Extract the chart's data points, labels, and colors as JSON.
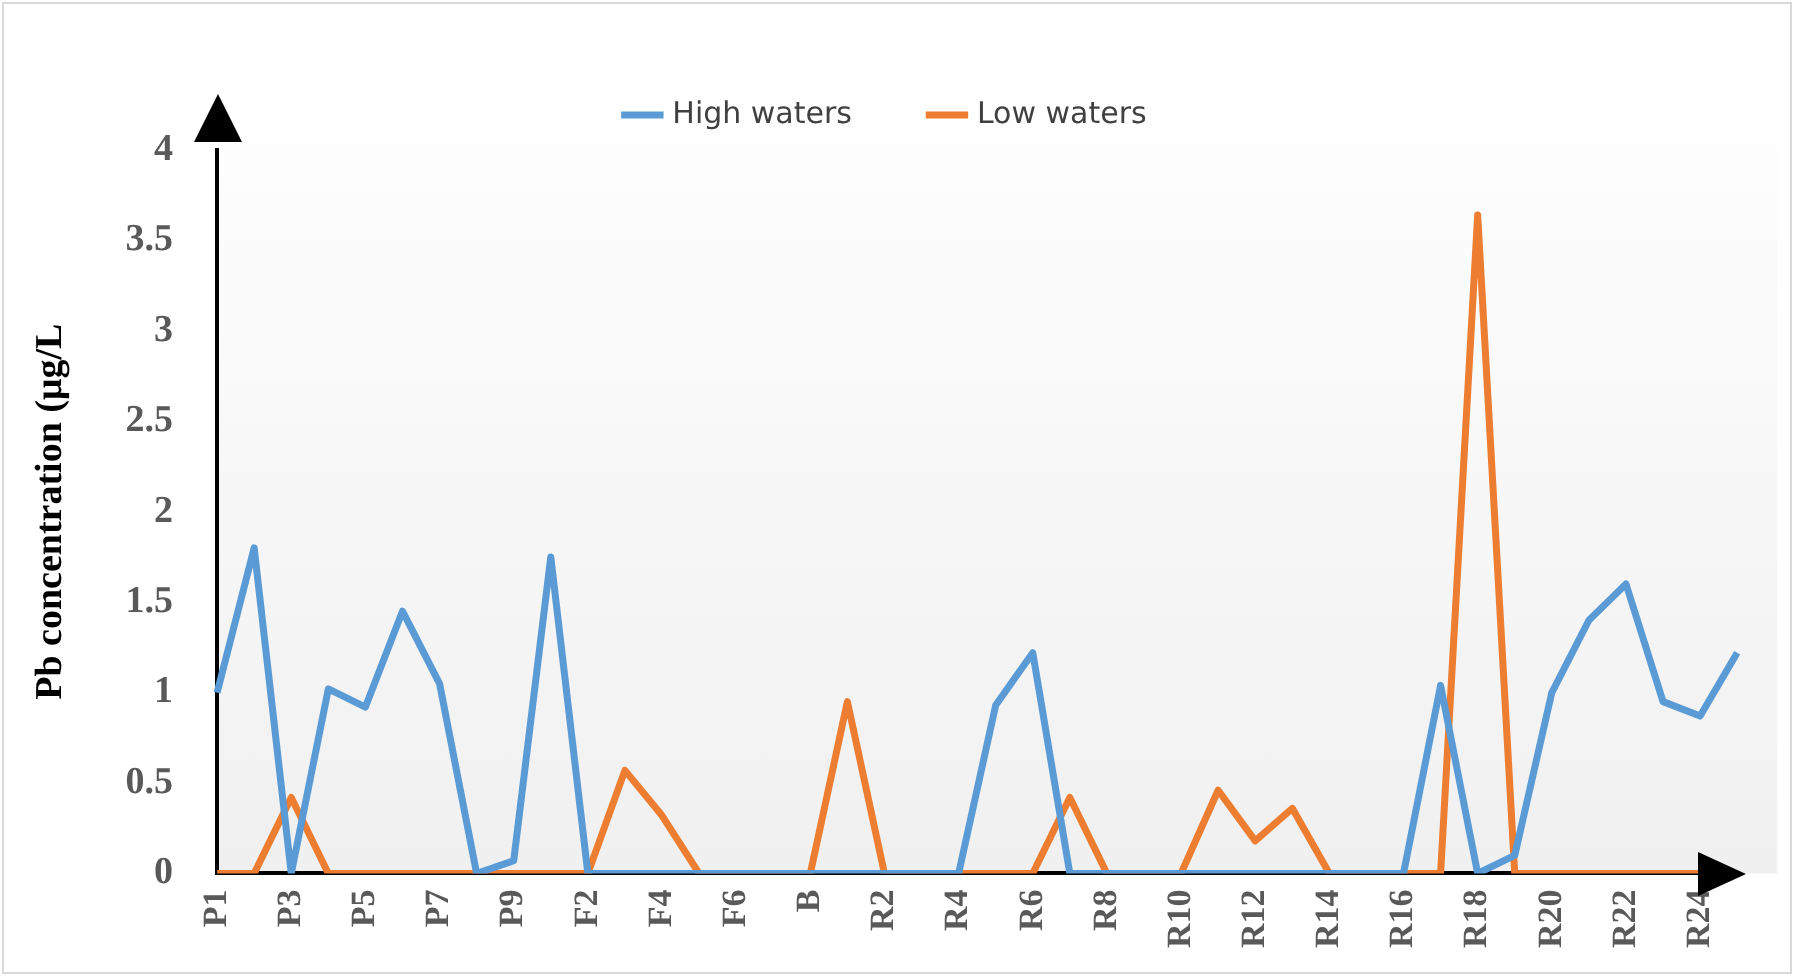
{
  "chart_data": {
    "type": "line",
    "ylabel": "Pb concentration (μg/L",
    "categories": [
      "P1",
      null,
      "P3",
      null,
      "P5",
      null,
      "P7",
      null,
      "P9",
      null,
      "F2",
      null,
      "F4",
      null,
      "F6",
      null,
      "B",
      null,
      "R2",
      null,
      "R4",
      null,
      "R6",
      null,
      "R8",
      null,
      "R10",
      null,
      "R12",
      null,
      "R14",
      null,
      "R16",
      null,
      "R18",
      null,
      "R20",
      null,
      "R22",
      null,
      "R24",
      null
    ],
    "series": [
      {
        "name": "High waters",
        "color": "#5b9bd5",
        "values": [
          1.0,
          1.8,
          0,
          1.02,
          0.92,
          1.45,
          1.05,
          0,
          0.07,
          1.75,
          0,
          0,
          0,
          0,
          0,
          0,
          0,
          0,
          0,
          0,
          0,
          0.93,
          1.22,
          0,
          0,
          0,
          0,
          0,
          0,
          0,
          0,
          0,
          0,
          1.04,
          0,
          0.1,
          1.0,
          1.4,
          1.6,
          0.95,
          0.87,
          1.22
        ]
      },
      {
        "name": "Low waters",
        "color": "#ed7d31",
        "values": [
          0,
          0,
          0.42,
          0,
          0,
          0,
          0,
          0,
          0,
          0,
          0,
          0.57,
          0.32,
          0,
          0,
          0,
          0,
          0.95,
          0,
          0,
          0,
          0,
          0,
          0.42,
          0,
          0,
          0,
          0.46,
          0.18,
          0.36,
          0,
          0,
          0,
          0,
          3.64,
          0,
          0,
          0,
          0,
          0,
          0,
          0
        ]
      }
    ],
    "ylim": [
      0,
      4
    ],
    "yticks": [
      0,
      0.5,
      1,
      1.5,
      2,
      2.5,
      3,
      3.5,
      4
    ],
    "grid": false,
    "legend": "top",
    "marker": "none",
    "line_style": "solid"
  }
}
